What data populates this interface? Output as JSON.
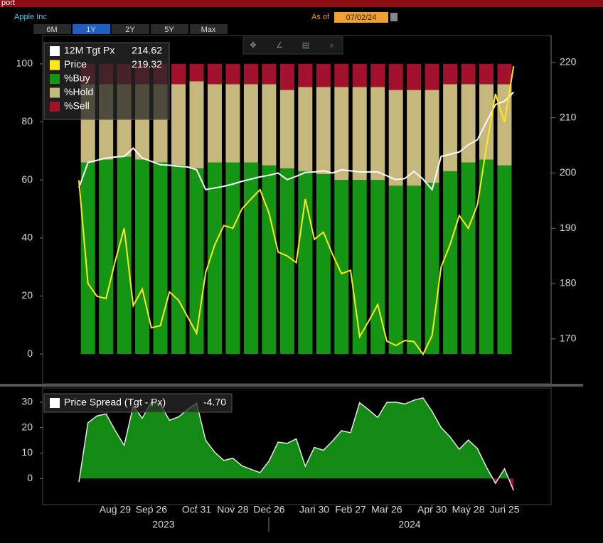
{
  "header": {
    "tab": "port",
    "security": "Apple Inc",
    "as_of_label": "As of",
    "as_of_date": "07/02/24",
    "ranges": [
      "6M",
      "1Y",
      "2Y",
      "5Y",
      "Max"
    ],
    "active_range": "1Y",
    "years": [
      "2023",
      "2024"
    ]
  },
  "chart_data": [
    {
      "type": "bar",
      "stacked": true,
      "x": [
        "2023-08-08",
        "2023-08-22",
        "2023-09-05",
        "2023-09-19",
        "2023-10-03",
        "2023-10-17",
        "2023-10-31",
        "2023-11-14",
        "2023-11-28",
        "2023-12-12",
        "2023-12-26",
        "2024-01-09",
        "2024-01-23",
        "2024-02-06",
        "2024-02-20",
        "2024-03-05",
        "2024-03-19",
        "2024-04-02",
        "2024-04-16",
        "2024-04-30",
        "2024-05-14",
        "2024-05-28",
        "2024-06-11",
        "2024-06-25"
      ],
      "series": [
        {
          "name": "%Buy",
          "color": "#149614",
          "values": [
            66,
            67,
            68,
            67,
            66,
            65,
            64,
            66,
            66,
            66,
            65,
            64,
            63,
            62,
            60,
            60,
            60,
            58,
            58,
            59,
            63,
            66,
            67,
            65
          ]
        },
        {
          "name": "%Hold",
          "color": "#c6b77c",
          "values": [
            27,
            26,
            25,
            26,
            27,
            28,
            30,
            27,
            27,
            27,
            28,
            27,
            29,
            30,
            32,
            32,
            32,
            33,
            33,
            32,
            30,
            27,
            26,
            28
          ]
        },
        {
          "name": "%Sell",
          "color": "#a3122c",
          "values": [
            7,
            7,
            7,
            7,
            7,
            7,
            6,
            7,
            7,
            7,
            7,
            9,
            8,
            8,
            8,
            8,
            8,
            9,
            9,
            9,
            7,
            7,
            7,
            7
          ]
        }
      ],
      "ylim": [
        -10,
        110
      ],
      "yticks": [
        0,
        20,
        40,
        60,
        80,
        100
      ],
      "xlim": [
        "2023-07-04",
        "2024-07-31"
      ],
      "xticks": [
        {
          "value": "2023-08-29",
          "label": "Aug 29"
        },
        {
          "value": "2023-09-26",
          "label": "Sep 26"
        },
        {
          "value": "2023-10-31",
          "label": "Oct 31"
        },
        {
          "value": "2023-11-28",
          "label": "Nov 28"
        },
        {
          "value": "2023-12-26",
          "label": "Dec 26"
        },
        {
          "value": "2024-01-30",
          "label": "Jan 30"
        },
        {
          "value": "2024-02-27",
          "label": "Feb 27"
        },
        {
          "value": "2024-03-26",
          "label": "Mar 26"
        },
        {
          "value": "2024-04-30",
          "label": "Apr 30"
        },
        {
          "value": "2024-05-28",
          "label": "May 28"
        },
        {
          "value": "2024-06-25",
          "label": "Jun 25"
        }
      ]
    },
    {
      "type": "line",
      "x": [
        "2023-08-01",
        "2023-08-08",
        "2023-08-15",
        "2023-08-22",
        "2023-08-29",
        "2023-09-05",
        "2023-09-12",
        "2023-09-19",
        "2023-09-26",
        "2023-10-03",
        "2023-10-10",
        "2023-10-17",
        "2023-10-24",
        "2023-10-31",
        "2023-11-07",
        "2023-11-14",
        "2023-11-21",
        "2023-11-28",
        "2023-12-05",
        "2023-12-12",
        "2023-12-19",
        "2023-12-26",
        "2024-01-02",
        "2024-01-09",
        "2024-01-16",
        "2024-01-23",
        "2024-01-30",
        "2024-02-06",
        "2024-02-13",
        "2024-02-20",
        "2024-02-27",
        "2024-03-05",
        "2024-03-12",
        "2024-03-19",
        "2024-03-26",
        "2024-04-02",
        "2024-04-09",
        "2024-04-16",
        "2024-04-23",
        "2024-04-30",
        "2024-05-07",
        "2024-05-14",
        "2024-05-21",
        "2024-05-28",
        "2024-06-04",
        "2024-06-11",
        "2024-06-18",
        "2024-06-25",
        "2024-07-02"
      ],
      "series": [
        {
          "name": "12M Tgt Px",
          "color": "#ffffff",
          "axis": "y2",
          "values": [
            197.3,
            201.9,
            202.3,
            202.7,
            202.9,
            203,
            204.5,
            202.7,
            202.1,
            201.5,
            201.4,
            201.2,
            201.1,
            200.6,
            197,
            197.3,
            197.6,
            198,
            198.5,
            198.9,
            199.3,
            199.6,
            200,
            198.8,
            199.4,
            200.1,
            200.2,
            200.4,
            200,
            200.6,
            200.4,
            200.2,
            200.2,
            200.2,
            199.5,
            198.8,
            199,
            200.3,
            198.9,
            197,
            203,
            203.4,
            203.8,
            205.1,
            206,
            209.2,
            212.4,
            213,
            214.62
          ]
        },
        {
          "name": "Price",
          "color": "#ffe81a",
          "axis": "y2",
          "values": [
            198.7,
            180,
            177.7,
            177.3,
            184,
            190,
            176,
            179,
            172,
            172.4,
            178.5,
            177,
            174,
            171,
            182,
            187,
            190.5,
            190,
            193.5,
            195.3,
            197,
            192.7,
            185.7,
            185,
            183.8,
            195.3,
            188,
            189.3,
            185.3,
            181.8,
            182.4,
            170.4,
            173.2,
            176.2,
            169.6,
            168.8,
            169.7,
            169.5,
            167.2,
            170.6,
            183,
            187.1,
            192.3,
            190,
            194.2,
            204.7,
            214.3,
            209.2,
            219.32
          ]
        }
      ],
      "y2lim": [
        162,
        225
      ],
      "y2ticks": [
        170,
        180,
        190,
        200,
        210,
        220
      ]
    },
    {
      "type": "area",
      "name": "Price Spread (Tgt - Px)",
      "last_label": "-4.70",
      "color": "#138a13",
      "negative_color": "#a01020",
      "x": [
        "2023-08-01",
        "2023-08-08",
        "2023-08-15",
        "2023-08-22",
        "2023-08-29",
        "2023-09-05",
        "2023-09-12",
        "2023-09-19",
        "2023-09-26",
        "2023-10-03",
        "2023-10-10",
        "2023-10-17",
        "2023-10-24",
        "2023-10-31",
        "2023-11-07",
        "2023-11-14",
        "2023-11-21",
        "2023-11-28",
        "2023-12-05",
        "2023-12-12",
        "2023-12-19",
        "2023-12-26",
        "2024-01-02",
        "2024-01-09",
        "2024-01-16",
        "2024-01-23",
        "2024-01-30",
        "2024-02-06",
        "2024-02-13",
        "2024-02-20",
        "2024-02-27",
        "2024-03-05",
        "2024-03-12",
        "2024-03-19",
        "2024-03-26",
        "2024-04-02",
        "2024-04-09",
        "2024-04-16",
        "2024-04-23",
        "2024-04-30",
        "2024-05-07",
        "2024-05-14",
        "2024-05-21",
        "2024-05-28",
        "2024-06-04",
        "2024-06-11",
        "2024-06-18",
        "2024-06-25",
        "2024-07-02"
      ],
      "values": [
        -1.4,
        21.9,
        24.6,
        25.4,
        18.9,
        13,
        28.5,
        23.7,
        30.1,
        29.1,
        22.9,
        24.2,
        27.1,
        29.6,
        15,
        10.3,
        7.1,
        8,
        5,
        3.6,
        2.3,
        6.9,
        14.3,
        13.8,
        15.6,
        4.8,
        12.2,
        11.1,
        14.7,
        18.8,
        18,
        29.8,
        27,
        24,
        29.9,
        30,
        29.3,
        30.8,
        31.7,
        26.4,
        20,
        16.3,
        11.5,
        15.1,
        11.8,
        4.5,
        -1.9,
        3.8,
        -4.7
      ],
      "ylim": [
        -10,
        35
      ],
      "yticks": [
        0,
        10,
        20,
        30
      ]
    }
  ]
}
